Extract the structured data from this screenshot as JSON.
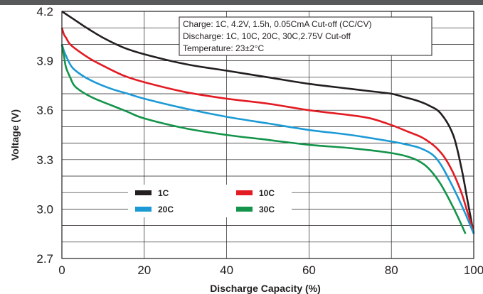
{
  "chart_data": {
    "type": "line",
    "xlabel": "Discharge Capacity (%)",
    "ylabel": "Voltage (V)",
    "xlim": [
      0,
      100
    ],
    "ylim": [
      2.7,
      4.2
    ],
    "x_ticks": [
      "0",
      "20",
      "40",
      "60",
      "80",
      "100"
    ],
    "y_ticks": [
      "2.7",
      "3.0",
      "3.3",
      "3.6",
      "3.9",
      "4.2"
    ],
    "grid": true,
    "annotations": [
      "Charge: 1C, 4.2V, 1.5h, 0.05CmA Cut-off (CC/CV)",
      "Discharge: 1C, 10C, 20C, 30C,2.75V Cut-off",
      "Temperature: 23±2°C"
    ],
    "legend_position": "bottom-left",
    "series": [
      {
        "name": "1C",
        "color": "#231f20",
        "x": [
          0,
          3,
          6,
          10,
          15,
          20,
          30,
          40,
          50,
          60,
          70,
          75,
          80,
          83,
          86,
          89,
          92,
          95,
          97,
          98.5,
          100
        ],
        "y": [
          4.2,
          4.15,
          4.1,
          4.04,
          3.98,
          3.94,
          3.88,
          3.84,
          3.8,
          3.76,
          3.73,
          3.715,
          3.7,
          3.68,
          3.66,
          3.63,
          3.58,
          3.45,
          3.25,
          3.05,
          2.85
        ]
      },
      {
        "name": "10C",
        "color": "#e31b23",
        "x": [
          0,
          0.5,
          1,
          2,
          4,
          7,
          10,
          15,
          20,
          30,
          40,
          50,
          60,
          70,
          75,
          80,
          84,
          87,
          89,
          91,
          93,
          95,
          97,
          98.5,
          100
        ],
        "y": [
          4.1,
          4.06,
          4.04,
          4.0,
          3.96,
          3.91,
          3.87,
          3.81,
          3.77,
          3.71,
          3.67,
          3.64,
          3.6,
          3.57,
          3.55,
          3.51,
          3.47,
          3.44,
          3.41,
          3.37,
          3.31,
          3.22,
          3.1,
          2.98,
          2.86
        ]
      },
      {
        "name": "20C",
        "color": "#1c9ad6",
        "x": [
          0,
          0.5,
          1,
          2.5,
          5,
          8,
          12,
          16,
          20,
          30,
          40,
          50,
          60,
          70,
          80,
          84,
          87,
          90,
          92,
          94,
          96,
          98,
          100
        ],
        "y": [
          4.0,
          3.96,
          3.93,
          3.86,
          3.81,
          3.77,
          3.73,
          3.7,
          3.67,
          3.61,
          3.56,
          3.52,
          3.48,
          3.45,
          3.41,
          3.39,
          3.37,
          3.33,
          3.27,
          3.18,
          3.08,
          2.97,
          2.85
        ]
      },
      {
        "name": "30C",
        "color": "#13944a",
        "x": [
          0,
          0.5,
          1,
          2,
          3,
          5,
          8,
          12,
          16,
          20,
          30,
          40,
          50,
          60,
          70,
          80,
          85,
          88,
          90,
          92,
          94,
          96,
          98
        ],
        "y": [
          4.0,
          3.93,
          3.86,
          3.8,
          3.75,
          3.71,
          3.67,
          3.63,
          3.59,
          3.55,
          3.49,
          3.45,
          3.42,
          3.39,
          3.37,
          3.34,
          3.31,
          3.27,
          3.22,
          3.15,
          3.06,
          2.96,
          2.85
        ]
      }
    ]
  }
}
